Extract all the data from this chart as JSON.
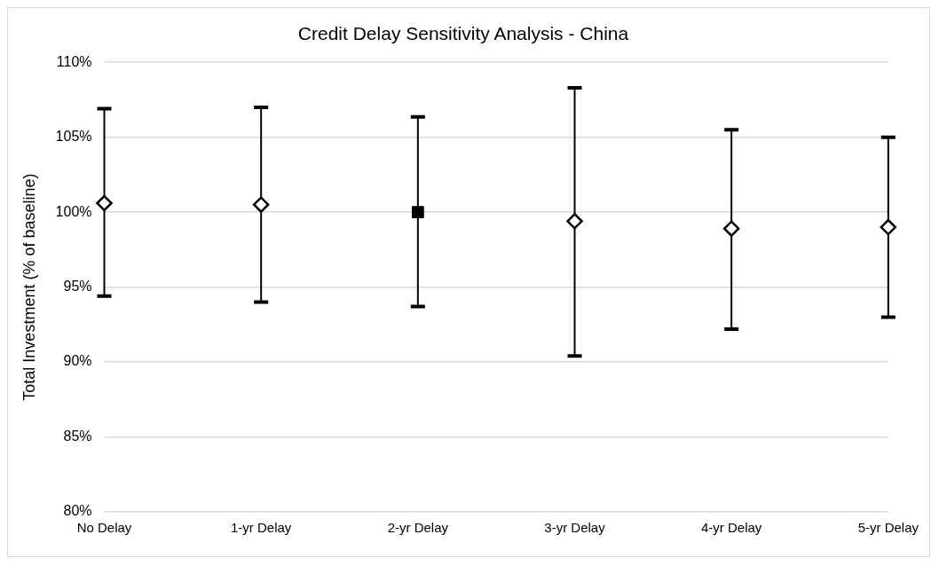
{
  "chart_data": {
    "type": "scatter",
    "title": "Credit Delay Sensitivity Analysis - China",
    "ylabel": "Total Investment (% of baseline)",
    "categories": [
      "No Delay",
      "1-yr Delay",
      "2-yr Delay",
      "3-yr Delay",
      "4-yr Delay",
      "5-yr Delay"
    ],
    "series": [
      {
        "color": "#000000",
        "marker": "diamond",
        "values": [
          100.6,
          100.5,
          null,
          99.4,
          98.9,
          99.0
        ],
        "errors": [
          [
            94.4,
            106.9
          ],
          [
            94.0,
            107.0
          ],
          null,
          [
            90.4,
            108.3
          ],
          [
            92.2,
            105.5
          ],
          [
            93.0,
            105.0
          ]
        ]
      },
      {
        "color": "#000000",
        "marker": "square",
        "values": [
          null,
          null,
          100.0,
          null,
          null,
          null
        ],
        "errors": [
          null,
          null,
          [
            93.7,
            106.35
          ],
          null,
          null,
          null
        ]
      }
    ],
    "ylim": [
      80,
      110
    ],
    "yticks": [
      {
        "value": 80,
        "label": "80%"
      },
      {
        "value": 85,
        "label": "85%"
      },
      {
        "value": 90,
        "label": "90%"
      },
      {
        "value": 95,
        "label": "95%"
      },
      {
        "value": 100,
        "label": "100%"
      },
      {
        "value": 105,
        "label": "105%"
      },
      {
        "value": 110,
        "label": "110%"
      }
    ],
    "grid": "y",
    "legend": false
  }
}
